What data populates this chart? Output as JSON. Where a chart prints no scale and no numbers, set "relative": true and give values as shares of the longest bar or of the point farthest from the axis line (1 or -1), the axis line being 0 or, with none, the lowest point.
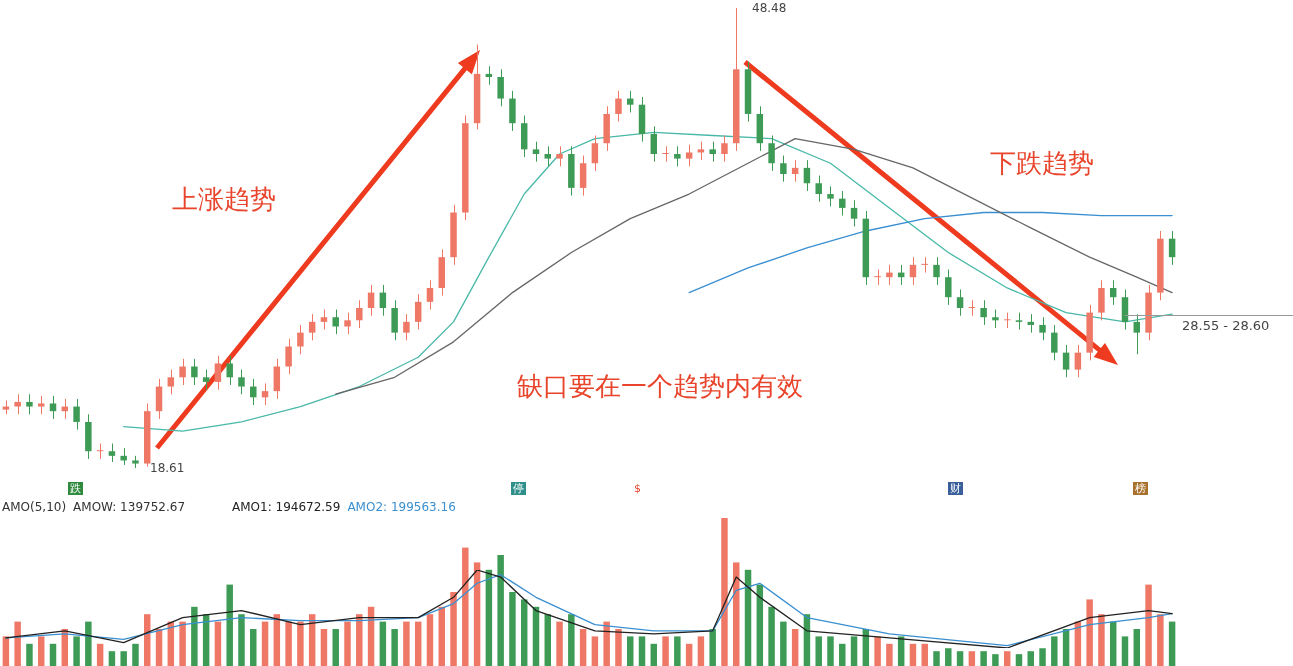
{
  "chart_data": [
    {
      "type": "candlestick",
      "categories": [
        null,
        null,
        null,
        null,
        null,
        null,
        null,
        null,
        null,
        null,
        null,
        null,
        null,
        null,
        null,
        null,
        null,
        null,
        null,
        null,
        null,
        null,
        null,
        null,
        null,
        null,
        null,
        null,
        null,
        null,
        null,
        null,
        null,
        null,
        null,
        null,
        null,
        null,
        null,
        null,
        null,
        null,
        null,
        null,
        null,
        null,
        null,
        null,
        null,
        null,
        null,
        null,
        null,
        null,
        null,
        null,
        null,
        null,
        null,
        null,
        null,
        null,
        null,
        null,
        null,
        null,
        null,
        null,
        null,
        null,
        null,
        null,
        null,
        null,
        null,
        null,
        null,
        null,
        null,
        null,
        null,
        null,
        null,
        null,
        null,
        null,
        null,
        null,
        null,
        null,
        null,
        null,
        null,
        null,
        null,
        null,
        null,
        null,
        null,
        null
      ],
      "ohlc": [
        [
          22.4,
          23.0,
          22.1,
          22.6
        ],
        [
          22.6,
          23.4,
          22.1,
          22.9
        ],
        [
          22.9,
          23.4,
          22.1,
          22.6
        ],
        [
          22.6,
          23.3,
          22.1,
          22.8
        ],
        [
          22.8,
          23.3,
          21.8,
          22.3
        ],
        [
          22.3,
          23.1,
          21.8,
          22.6
        ],
        [
          22.6,
          23.1,
          21.1,
          21.6
        ],
        [
          21.6,
          22.1,
          19.2,
          19.7
        ],
        [
          19.7,
          20.2,
          19.2,
          19.7
        ],
        [
          19.7,
          20.2,
          19.0,
          19.4
        ],
        [
          19.4,
          19.9,
          18.8,
          19.1
        ],
        [
          19.1,
          19.4,
          18.61,
          18.9
        ],
        [
          18.9,
          22.8,
          18.7,
          22.3
        ],
        [
          22.3,
          24.4,
          21.8,
          23.9
        ],
        [
          23.9,
          25.0,
          23.4,
          24.5
        ],
        [
          24.5,
          25.7,
          24.0,
          25.2
        ],
        [
          25.2,
          25.7,
          24.0,
          24.5
        ],
        [
          24.5,
          25.0,
          23.7,
          24.2
        ],
        [
          24.2,
          25.9,
          23.7,
          25.4
        ],
        [
          25.4,
          25.9,
          24.0,
          24.5
        ],
        [
          24.5,
          25.0,
          23.4,
          23.9
        ],
        [
          23.9,
          24.4,
          22.7,
          23.2
        ],
        [
          23.2,
          24.1,
          22.7,
          23.6
        ],
        [
          23.6,
          25.7,
          23.1,
          25.2
        ],
        [
          25.2,
          27.0,
          24.7,
          26.5
        ],
        [
          26.5,
          27.9,
          26.0,
          27.4
        ],
        [
          27.4,
          28.6,
          26.9,
          28.1
        ],
        [
          28.1,
          28.9,
          27.6,
          28.4
        ],
        [
          28.4,
          28.9,
          27.3,
          27.8
        ],
        [
          27.8,
          28.7,
          27.3,
          28.2
        ],
        [
          28.2,
          29.5,
          27.7,
          29.0
        ],
        [
          29.0,
          30.5,
          28.5,
          30.0
        ],
        [
          30.0,
          30.5,
          28.5,
          29.0
        ],
        [
          29.0,
          29.5,
          26.9,
          27.4
        ],
        [
          27.4,
          28.6,
          26.9,
          28.1
        ],
        [
          28.1,
          29.9,
          27.6,
          29.4
        ],
        [
          29.4,
          30.8,
          28.9,
          30.3
        ],
        [
          30.3,
          32.8,
          29.8,
          32.3
        ],
        [
          32.3,
          35.7,
          31.8,
          35.2
        ],
        [
          35.2,
          41.5,
          34.7,
          41.0
        ],
        [
          41.0,
          46.1,
          40.6,
          44.2
        ],
        [
          44.2,
          44.7,
          43.5,
          44.0
        ],
        [
          44.0,
          44.5,
          42.1,
          42.6
        ],
        [
          42.6,
          43.1,
          40.5,
          41.0
        ],
        [
          41.0,
          41.5,
          38.8,
          39.3
        ],
        [
          39.3,
          39.8,
          38.5,
          39.0
        ],
        [
          39.0,
          39.5,
          38.2,
          38.7
        ],
        [
          38.7,
          39.5,
          38.2,
          39.0
        ],
        [
          39.0,
          39.5,
          36.3,
          36.8
        ],
        [
          36.8,
          38.9,
          36.3,
          38.4
        ],
        [
          38.4,
          40.2,
          37.9,
          39.7
        ],
        [
          39.7,
          42.1,
          39.2,
          41.6
        ],
        [
          41.6,
          43.1,
          41.1,
          42.6
        ],
        [
          42.6,
          43.1,
          41.7,
          42.2
        ],
        [
          42.2,
          42.7,
          39.8,
          40.3
        ],
        [
          40.3,
          40.8,
          38.5,
          39.0
        ],
        [
          39.0,
          39.5,
          38.5,
          39.0
        ],
        [
          39.0,
          39.5,
          38.2,
          38.7
        ],
        [
          38.7,
          39.6,
          38.2,
          39.1
        ],
        [
          39.1,
          39.8,
          38.6,
          39.3
        ],
        [
          39.3,
          39.8,
          38.5,
          39.0
        ],
        [
          39.0,
          40.2,
          38.5,
          39.7
        ],
        [
          39.7,
          48.48,
          39.2,
          44.5
        ],
        [
          44.5,
          45.0,
          41.1,
          41.6
        ],
        [
          41.6,
          42.1,
          39.2,
          39.7
        ],
        [
          39.7,
          40.2,
          37.9,
          38.4
        ],
        [
          38.4,
          38.9,
          37.2,
          37.7
        ],
        [
          37.7,
          38.6,
          37.2,
          38.1
        ],
        [
          38.1,
          38.6,
          36.6,
          37.1
        ],
        [
          37.1,
          37.6,
          35.9,
          36.4
        ],
        [
          36.4,
          36.9,
          35.6,
          36.1
        ],
        [
          36.1,
          36.6,
          35.0,
          35.5
        ],
        [
          35.5,
          36.0,
          34.3,
          34.8
        ],
        [
          34.8,
          35.3,
          30.5,
          31.0
        ],
        [
          31.0,
          31.5,
          30.5,
          31.0
        ],
        [
          31.0,
          31.8,
          30.5,
          31.3
        ],
        [
          31.3,
          31.8,
          30.5,
          31.0
        ],
        [
          31.0,
          32.3,
          30.5,
          31.8
        ],
        [
          31.8,
          32.3,
          31.3,
          31.8
        ],
        [
          31.8,
          32.3,
          30.5,
          31.0
        ],
        [
          31.0,
          31.5,
          29.2,
          29.7
        ],
        [
          29.7,
          30.2,
          28.5,
          29.0
        ],
        [
          29.0,
          29.5,
          28.5,
          29.0
        ],
        [
          29.0,
          29.5,
          27.9,
          28.4
        ],
        [
          28.4,
          28.9,
          27.7,
          28.2
        ],
        [
          28.2,
          28.7,
          27.7,
          28.2
        ],
        [
          28.2,
          28.7,
          27.6,
          28.1
        ],
        [
          28.1,
          28.6,
          27.4,
          27.9
        ],
        [
          27.9,
          28.4,
          26.9,
          27.4
        ],
        [
          27.4,
          27.9,
          25.6,
          26.1
        ],
        [
          26.1,
          26.6,
          24.5,
          25.0
        ],
        [
          25.0,
          26.6,
          24.5,
          26.1
        ],
        [
          26.1,
          29.2,
          25.6,
          28.7
        ],
        [
          28.7,
          30.8,
          28.2,
          30.3
        ],
        [
          30.3,
          30.8,
          29.2,
          29.7
        ],
        [
          29.7,
          30.2,
          27.6,
          28.1
        ],
        [
          28.1,
          28.6,
          26.0,
          27.4
        ],
        [
          27.4,
          30.5,
          26.9,
          30.0
        ],
        [
          30.0,
          34.0,
          29.5,
          33.5
        ],
        [
          33.5,
          34.0,
          31.8,
          32.3
        ]
      ],
      "colors": [
        "#ee7766",
        "#ee7766",
        "#3d9b56",
        "#ee7766",
        "#3d9b56",
        "#ee7766",
        "#3d9b56",
        "#3d9b56",
        "#ee7766",
        "#3d9b56",
        "#3d9b56",
        "#3d9b56",
        "#ee7766",
        "#ee7766",
        "#ee7766",
        "#ee7766",
        "#3d9b56",
        "#3d9b56",
        "#ee7766",
        "#3d9b56",
        "#3d9b56",
        "#3d9b56",
        "#ee7766",
        "#ee7766",
        "#ee7766",
        "#ee7766",
        "#ee7766",
        "#ee7766",
        "#3d9b56",
        "#ee7766",
        "#ee7766",
        "#ee7766",
        "#3d9b56",
        "#3d9b56",
        "#ee7766",
        "#ee7766",
        "#ee7766",
        "#ee7766",
        "#ee7766",
        "#ee7766",
        "#ee7766",
        "#3d9b56",
        "#3d9b56",
        "#3d9b56",
        "#3d9b56",
        "#3d9b56",
        "#3d9b56",
        "#ee7766",
        "#3d9b56",
        "#ee7766",
        "#ee7766",
        "#ee7766",
        "#ee7766",
        "#3d9b56",
        "#3d9b56",
        "#3d9b56",
        "#ee7766",
        "#3d9b56",
        "#ee7766",
        "#ee7766",
        "#3d9b56",
        "#ee7766",
        "#ee7766",
        "#3d9b56",
        "#3d9b56",
        "#3d9b56",
        "#3d9b56",
        "#ee7766",
        "#3d9b56",
        "#3d9b56",
        "#3d9b56",
        "#3d9b56",
        "#3d9b56",
        "#3d9b56",
        "#ee7766",
        "#ee7766",
        "#3d9b56",
        "#ee7766",
        "#ee7766",
        "#3d9b56",
        "#3d9b56",
        "#3d9b56",
        "#ee7766",
        "#3d9b56",
        "#3d9b56",
        "#ee7766",
        "#3d9b56",
        "#3d9b56",
        "#3d9b56",
        "#3d9b56",
        "#3d9b56",
        "#ee7766",
        "#ee7766",
        "#ee7766",
        "#3d9b56",
        "#3d9b56",
        "#3d9b56",
        "#ee7766",
        "#ee7766",
        "#3d9b56"
      ],
      "series": [
        {
          "type": "line",
          "color": "#666666",
          "values": [
            null,
            null,
            null,
            null,
            null,
            null,
            null,
            null,
            null,
            null,
            null,
            null,
            null,
            null,
            null,
            null,
            null,
            null,
            null,
            null,
            null,
            null,
            null,
            null,
            null,
            null,
            null,
            null,
            23.4,
            null,
            null,
            null,
            null,
            24.5,
            null,
            null,
            null,
            null,
            26.8,
            null,
            null,
            null,
            null,
            30.0,
            null,
            null,
            null,
            null,
            32.6,
            null,
            null,
            null,
            null,
            34.8,
            null,
            null,
            null,
            null,
            36.4,
            null,
            null,
            null,
            null,
            38.4,
            null,
            null,
            null,
            40.0,
            null,
            null,
            null,
            null,
            39.3,
            null,
            null,
            null,
            null,
            38.1,
            null,
            null,
            null,
            null,
            null,
            null,
            null,
            null,
            null,
            34.2,
            null,
            null,
            null,
            null,
            32.3,
            null,
            null,
            null,
            31.0,
            null,
            null,
            30.0
          ]
        },
        {
          "type": "line",
          "color": "#3a8fd0",
          "values": [
            null,
            null,
            null,
            null,
            null,
            null,
            null,
            null,
            null,
            null,
            null,
            null,
            null,
            null,
            null,
            null,
            null,
            null,
            null,
            null,
            null,
            null,
            null,
            null,
            null,
            null,
            null,
            null,
            null,
            null,
            null,
            null,
            null,
            null,
            null,
            null,
            null,
            null,
            null,
            null,
            null,
            null,
            null,
            null,
            null,
            null,
            null,
            null,
            null,
            null,
            null,
            null,
            null,
            null,
            null,
            null,
            null,
            null,
            30.0,
            null,
            null,
            null,
            null,
            31.6,
            null,
            null,
            null,
            null,
            32.9,
            null,
            null,
            null,
            null,
            34.0,
            null,
            null,
            null,
            null,
            34.8,
            null,
            null,
            null,
            null,
            35.2,
            null,
            null,
            null,
            null,
            35.2,
            null,
            null,
            null,
            null,
            35.0,
            null,
            null,
            null,
            null,
            null,
            35.0
          ]
        },
        {
          "type": "line",
          "color": "#48b8a8",
          "values": [
            null,
            null,
            null,
            null,
            null,
            null,
            null,
            null,
            null,
            null,
            21.3,
            null,
            null,
            null,
            null,
            21.0,
            null,
            null,
            null,
            null,
            21.6,
            null,
            null,
            null,
            null,
            22.6,
            null,
            null,
            null,
            null,
            23.9,
            null,
            null,
            null,
            null,
            25.8,
            null,
            null,
            28.1,
            null,
            null,
            32.3,
            null,
            null,
            36.4,
            null,
            null,
            39.0,
            null,
            null,
            40.0,
            null,
            null,
            null,
            null,
            40.4,
            null,
            null,
            null,
            null,
            40.2,
            null,
            null,
            null,
            null,
            40.0,
            null,
            null,
            null,
            null,
            38.4,
            null,
            null,
            null,
            null,
            35.5,
            null,
            null,
            null,
            null,
            32.6,
            null,
            null,
            null,
            null,
            30.3,
            null,
            null,
            null,
            null,
            28.7,
            null,
            null,
            null,
            null,
            28.1,
            null,
            null,
            null,
            28.6
          ]
        }
      ],
      "ref_lines": [
        {
          "axis": "y",
          "value": 28.55,
          "label": "28.55 - 28.60",
          "color": "#999999"
        }
      ],
      "annotations": [
        "上涨趋势",
        "下跌趋势",
        "缺口要在一个趋势内有效",
        "48.48",
        "18.61",
        "跌",
        "停",
        "$",
        "财",
        "榜"
      ],
      "tick_labels": false
    },
    {
      "type": "bar",
      "relative": true,
      "title": "AMO(5,10)",
      "categories": [
        null,
        null,
        null,
        null,
        null,
        null,
        null,
        null,
        null,
        null,
        null,
        null,
        null,
        null,
        null,
        null,
        null,
        null,
        null,
        null,
        null,
        null,
        null,
        null,
        null,
        null,
        null,
        null,
        null,
        null,
        null,
        null,
        null,
        null,
        null,
        null,
        null,
        null,
        null,
        null,
        null,
        null,
        null,
        null,
        null,
        null,
        null,
        null,
        null,
        null,
        null,
        null,
        null,
        null,
        null,
        null,
        null,
        null,
        null,
        null,
        null,
        null,
        null,
        null,
        null,
        null,
        null,
        null,
        null,
        null,
        null,
        null,
        null,
        null,
        null,
        null,
        null,
        null,
        null,
        null,
        null,
        null,
        null,
        null,
        null,
        null,
        null,
        null,
        null,
        null,
        null,
        null,
        null,
        null,
        null,
        null,
        null,
        null,
        null,
        null
      ],
      "values": [
        0.2,
        0.3,
        0.15,
        0.2,
        0.15,
        0.25,
        0.2,
        0.3,
        0.15,
        0.1,
        0.1,
        0.15,
        0.35,
        0.25,
        0.3,
        0.3,
        0.4,
        0.35,
        0.3,
        0.55,
        0.35,
        0.25,
        0.3,
        0.35,
        0.3,
        0.3,
        0.35,
        0.25,
        0.25,
        0.3,
        0.35,
        0.4,
        0.3,
        0.25,
        0.3,
        0.3,
        0.35,
        0.4,
        0.5,
        0.8,
        0.7,
        0.65,
        0.75,
        0.5,
        0.45,
        0.4,
        0.35,
        0.3,
        0.35,
        0.25,
        0.2,
        0.3,
        0.25,
        0.2,
        0.2,
        0.15,
        0.2,
        0.2,
        0.15,
        0.2,
        0.25,
        1,
        0.7,
        0.65,
        0.55,
        0.4,
        0.3,
        0.25,
        0.35,
        0.2,
        0.2,
        0.15,
        0.2,
        0.25,
        0.2,
        0.15,
        0.2,
        0.15,
        0.15,
        0.1,
        0.12,
        0.1,
        0.1,
        0.1,
        0.08,
        0.1,
        0.08,
        0.1,
        0.12,
        0.2,
        0.25,
        0.3,
        0.45,
        0.35,
        0.3,
        0.2,
        0.25,
        0.55,
        0.35,
        0.3
      ],
      "colors": [
        "#ee7766",
        "#ee7766",
        "#3d9b56",
        "#ee7766",
        "#3d9b56",
        "#ee7766",
        "#3d9b56",
        "#3d9b56",
        "#ee7766",
        "#3d9b56",
        "#3d9b56",
        "#3d9b56",
        "#ee7766",
        "#ee7766",
        "#ee7766",
        "#ee7766",
        "#3d9b56",
        "#3d9b56",
        "#ee7766",
        "#3d9b56",
        "#3d9b56",
        "#3d9b56",
        "#ee7766",
        "#ee7766",
        "#ee7766",
        "#ee7766",
        "#ee7766",
        "#ee7766",
        "#3d9b56",
        "#ee7766",
        "#ee7766",
        "#ee7766",
        "#3d9b56",
        "#3d9b56",
        "#ee7766",
        "#ee7766",
        "#ee7766",
        "#ee7766",
        "#ee7766",
        "#ee7766",
        "#ee7766",
        "#3d9b56",
        "#3d9b56",
        "#3d9b56",
        "#3d9b56",
        "#3d9b56",
        "#3d9b56",
        "#ee7766",
        "#3d9b56",
        "#ee7766",
        "#ee7766",
        "#ee7766",
        "#ee7766",
        "#3d9b56",
        "#3d9b56",
        "#3d9b56",
        "#ee7766",
        "#3d9b56",
        "#ee7766",
        "#ee7766",
        "#3d9b56",
        "#ee7766",
        "#ee7766",
        "#3d9b56",
        "#3d9b56",
        "#3d9b56",
        "#3d9b56",
        "#ee7766",
        "#3d9b56",
        "#3d9b56",
        "#3d9b56",
        "#3d9b56",
        "#3d9b56",
        "#3d9b56",
        "#ee7766",
        "#ee7766",
        "#3d9b56",
        "#ee7766",
        "#ee7766",
        "#3d9b56",
        "#3d9b56",
        "#3d9b56",
        "#ee7766",
        "#3d9b56",
        "#3d9b56",
        "#ee7766",
        "#3d9b56",
        "#3d9b56",
        "#3d9b56",
        "#3d9b56",
        "#3d9b56",
        "#ee7766",
        "#ee7766",
        "#ee7766",
        "#3d9b56",
        "#3d9b56",
        "#3d9b56",
        "#ee7766",
        "#ee7766",
        "#3d9b56"
      ],
      "annotations": [
        "AMOW: 139752.67"
      ]
    },
    {
      "type": "line",
      "relative": true,
      "categories": [
        null,
        null,
        null,
        null,
        null,
        null,
        null,
        null,
        null,
        null,
        null,
        null,
        null,
        null,
        null,
        null,
        null,
        null,
        null,
        null,
        null,
        null,
        null,
        null,
        null,
        null,
        null,
        null,
        null,
        null,
        null,
        null,
        null,
        null,
        null,
        null,
        null,
        null,
        null,
        null,
        null,
        null,
        null,
        null,
        null,
        null,
        null,
        null,
        null,
        null,
        null,
        null,
        null,
        null,
        null,
        null,
        null,
        null,
        null,
        null,
        null,
        null,
        null,
        null,
        null,
        null,
        null,
        null,
        null,
        null,
        null,
        null,
        null,
        null,
        null,
        null,
        null,
        null,
        null,
        null,
        null,
        null,
        null,
        null,
        null,
        null,
        null,
        null,
        null,
        null,
        null,
        null,
        null,
        null,
        null,
        null,
        null,
        null,
        null,
        null
      ],
      "series": [
        {
          "name": "AMO1: 194672.59",
          "color": "#222222",
          "values": [
            0.13,
            null,
            null,
            null,
            null,
            0.22,
            null,
            null,
            null,
            null,
            0.07,
            null,
            null,
            null,
            null,
            0.39,
            null,
            null,
            null,
            null,
            0.48,
            null,
            null,
            null,
            null,
            0.3,
            null,
            null,
            null,
            null,
            0.39,
            null,
            null,
            null,
            null,
            0.39,
            null,
            null,
            0.65,
            null,
            1,
            null,
            0.91,
            null,
            null,
            0.48,
            null,
            null,
            null,
            null,
            0.22,
            null,
            null,
            null,
            null,
            0.18,
            null,
            null,
            null,
            null,
            0.22,
            null,
            0.91,
            null,
            0.65,
            null,
            null,
            null,
            0.22,
            null,
            null,
            null,
            null,
            null,
            null,
            0.13,
            null,
            null,
            null,
            null,
            null,
            null,
            null,
            null,
            null,
            0,
            null,
            null,
            null,
            null,
            null,
            null,
            0.39,
            null,
            null,
            null,
            null,
            0.48,
            null,
            0.44
          ]
        },
        {
          "name": "AMO2: 199563.16",
          "color": "#3a8fd0",
          "values": [
            0.13,
            null,
            null,
            null,
            null,
            0.18,
            null,
            null,
            null,
            null,
            0.11,
            null,
            null,
            null,
            null,
            0.3,
            null,
            null,
            null,
            null,
            0.39,
            null,
            null,
            null,
            null,
            0.35,
            null,
            null,
            null,
            null,
            0.35,
            null,
            null,
            null,
            null,
            0.39,
            null,
            null,
            0.57,
            null,
            0.83,
            null,
            0.94,
            null,
            null,
            0.65,
            null,
            null,
            null,
            null,
            0.3,
            null,
            null,
            null,
            null,
            0.22,
            null,
            null,
            null,
            null,
            0.22,
            null,
            0.74,
            null,
            0.83,
            null,
            null,
            null,
            0.39,
            null,
            null,
            null,
            null,
            null,
            null,
            0.18,
            null,
            null,
            null,
            null,
            null,
            null,
            null,
            null,
            null,
            0.03,
            null,
            null,
            null,
            null,
            null,
            null,
            0.3,
            null,
            null,
            null,
            null,
            0.39,
            null,
            0.44
          ]
        }
      ]
    }
  ]
}
